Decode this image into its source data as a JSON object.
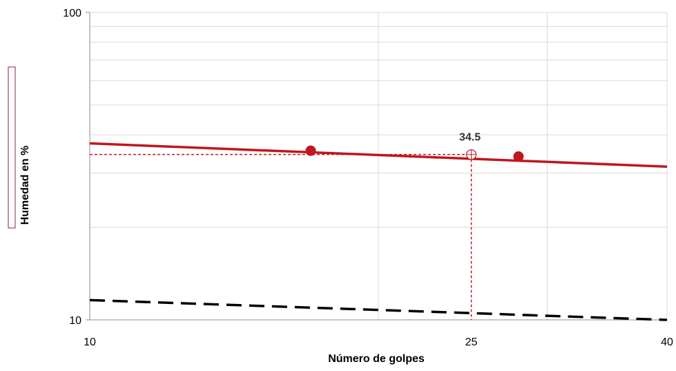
{
  "chart_data": {
    "type": "line",
    "title": "",
    "xlabel": "Número de golpes",
    "ylabel": "Humedad en %",
    "xscale": "log",
    "yscale": "log",
    "xlim": [
      10,
      40
    ],
    "ylim": [
      10,
      100
    ],
    "x_ticks": [
      10,
      25,
      40
    ],
    "y_ticks": [
      10,
      100
    ],
    "grid": true,
    "colors": {
      "primary": "#c0161e",
      "secondary": "#000000",
      "grid": "#d9d9d9"
    },
    "series": [
      {
        "kind": "markers",
        "x": [
          17,
          28
        ],
        "y": [
          35.5,
          34.0
        ]
      },
      {
        "kind": "trend-line",
        "x": [
          10,
          40
        ],
        "y": [
          37.5,
          31.5
        ]
      },
      {
        "kind": "dashed-line",
        "x": [
          10,
          40
        ],
        "y": [
          11.6,
          10.0
        ]
      }
    ],
    "annotation": {
      "x": 25,
      "y": 34.5,
      "label": "34.5"
    }
  }
}
